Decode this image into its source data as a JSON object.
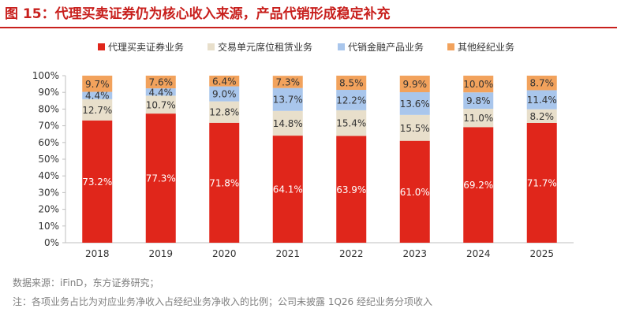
{
  "title": "图 15：代理买卖证券仍为核心收入来源，产品代销形成稳定补充",
  "source_line": "数据来源：iFinD，东方证券研究；",
  "note_line": "注：各项业务占比为对应业务净收入占经纪业务净收入的比例；公司未披露 1Q26 经纪业务分项收入",
  "chart_data": {
    "type": "bar",
    "stacked": true,
    "percent": true,
    "categories": [
      "2018",
      "2019",
      "2020",
      "2021",
      "2022",
      "2023",
      "2024",
      "2025"
    ],
    "series": [
      {
        "name": "代理买卖证券业务",
        "color": "#e0261b",
        "label_color": "#ffffff",
        "values": [
          73.2,
          77.3,
          71.8,
          64.1,
          63.9,
          61.0,
          69.2,
          71.7
        ]
      },
      {
        "name": "交易单元席位租赁业务",
        "color": "#e8dfcb",
        "label_color": "#333333",
        "values": [
          12.7,
          10.7,
          12.8,
          14.8,
          15.4,
          15.5,
          11.0,
          8.2
        ]
      },
      {
        "name": "代销金融产品业务",
        "color": "#a9c6ec",
        "label_color": "#333333",
        "values": [
          4.4,
          4.4,
          9.0,
          13.7,
          12.2,
          13.6,
          9.8,
          11.4
        ]
      },
      {
        "name": "其他经纪业务",
        "color": "#f2a25c",
        "label_color": "#333333",
        "values": [
          9.7,
          7.6,
          6.4,
          7.3,
          8.5,
          9.9,
          10.0,
          8.7
        ]
      }
    ],
    "ylim": [
      0,
      100
    ],
    "yticks": [
      "0%",
      "10%",
      "20%",
      "30%",
      "40%",
      "50%",
      "60%",
      "70%",
      "80%",
      "90%",
      "100%"
    ],
    "value_suffix": "%",
    "legend_position": "top-center",
    "grid": false
  }
}
